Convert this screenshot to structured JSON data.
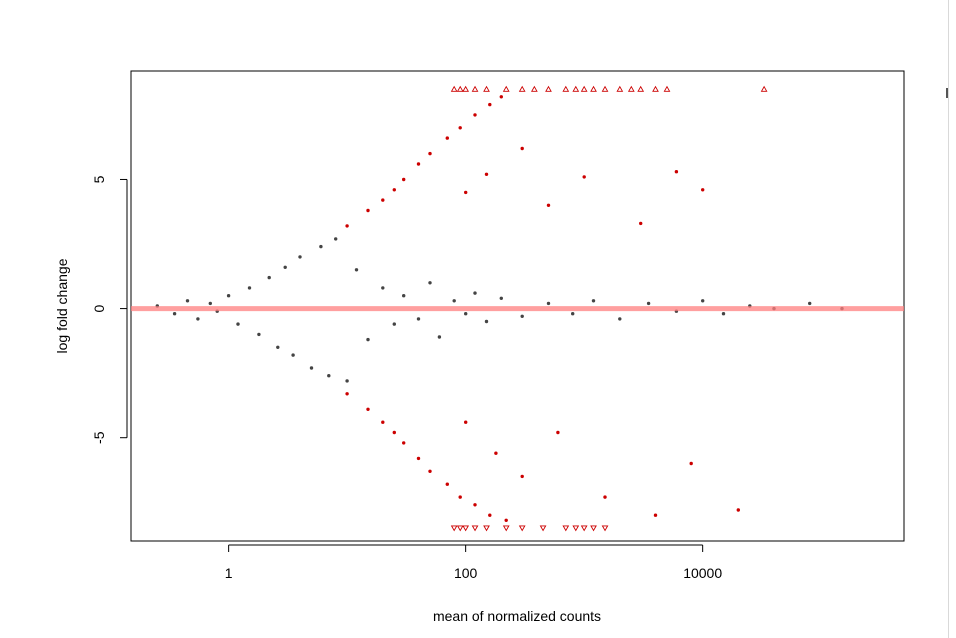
{
  "chart_data": {
    "type": "scatter",
    "title": "",
    "xlabel": "mean of normalized counts",
    "ylabel": "log fold change",
    "x_scale": "log10",
    "xlim": [
      0.15,
      500000
    ],
    "ylim": [
      -9.0,
      9.2
    ],
    "x_ticks": [
      {
        "value": 1,
        "label": "1"
      },
      {
        "value": 100,
        "label": "100"
      },
      {
        "value": 10000,
        "label": "10000"
      }
    ],
    "y_ticks": [
      {
        "value": 5,
        "label": "5"
      },
      {
        "value": 0,
        "label": "0"
      },
      {
        "value": -5,
        "label": "-5"
      }
    ],
    "reference_line": {
      "y": 0,
      "color": "#ff7f7f"
    },
    "grid": false,
    "legend": "none",
    "series": [
      {
        "color": "#444444",
        "points": [
          [
            0.25,
            0.1
          ],
          [
            0.35,
            -0.2
          ],
          [
            0.45,
            0.3
          ],
          [
            0.55,
            -0.4
          ],
          [
            0.7,
            0.2
          ],
          [
            0.8,
            -0.1
          ],
          [
            1.0,
            0.5
          ],
          [
            1.2,
            -0.6
          ],
          [
            1.5,
            0.8
          ],
          [
            1.8,
            -1.0
          ],
          [
            2.2,
            1.2
          ],
          [
            2.6,
            -1.5
          ],
          [
            3.0,
            1.6
          ],
          [
            3.5,
            -1.8
          ],
          [
            4.0,
            2.0
          ],
          [
            5.0,
            -2.3
          ],
          [
            6.0,
            2.4
          ],
          [
            7.0,
            -2.6
          ],
          [
            8.0,
            2.7
          ],
          [
            10,
            -2.8
          ],
          [
            12,
            1.5
          ],
          [
            15,
            -1.2
          ],
          [
            20,
            0.8
          ],
          [
            25,
            -0.6
          ],
          [
            30,
            0.5
          ],
          [
            40,
            -0.4
          ],
          [
            50,
            1.0
          ],
          [
            60,
            -1.1
          ],
          [
            80,
            0.3
          ],
          [
            100,
            -0.2
          ],
          [
            120,
            0.6
          ],
          [
            150,
            -0.5
          ],
          [
            200,
            0.4
          ],
          [
            300,
            -0.3
          ],
          [
            500,
            0.2
          ],
          [
            800,
            -0.2
          ],
          [
            1200,
            0.3
          ],
          [
            2000,
            -0.4
          ],
          [
            3500,
            0.2
          ],
          [
            6000,
            -0.1
          ],
          [
            10000,
            0.3
          ],
          [
            15000,
            -0.2
          ],
          [
            25000,
            0.1
          ],
          [
            40000,
            0.0
          ],
          [
            80000,
            0.2
          ],
          [
            150000,
            0.0
          ]
        ]
      },
      {
        "color": "#cc0000",
        "points": [
          [
            10,
            3.2
          ],
          [
            15,
            3.8
          ],
          [
            20,
            4.2
          ],
          [
            25,
            4.6
          ],
          [
            30,
            5.0
          ],
          [
            40,
            5.6
          ],
          [
            50,
            6.0
          ],
          [
            70,
            6.6
          ],
          [
            90,
            7.0
          ],
          [
            120,
            7.5
          ],
          [
            160,
            7.9
          ],
          [
            200,
            8.2
          ],
          [
            100,
            4.5
          ],
          [
            150,
            5.2
          ],
          [
            300,
            6.2
          ],
          [
            500,
            4.0
          ],
          [
            1000,
            5.1
          ],
          [
            3000,
            3.3
          ],
          [
            6000,
            5.3
          ],
          [
            10000,
            4.6
          ],
          [
            10,
            -3.3
          ],
          [
            15,
            -3.9
          ],
          [
            20,
            -4.4
          ],
          [
            25,
            -4.8
          ],
          [
            30,
            -5.2
          ],
          [
            40,
            -5.8
          ],
          [
            50,
            -6.3
          ],
          [
            70,
            -6.8
          ],
          [
            90,
            -7.3
          ],
          [
            120,
            -7.6
          ],
          [
            160,
            -8.0
          ],
          [
            220,
            -8.2
          ],
          [
            100,
            -4.4
          ],
          [
            180,
            -5.6
          ],
          [
            300,
            -6.5
          ],
          [
            600,
            -4.8
          ],
          [
            1500,
            -7.3
          ],
          [
            4000,
            -8.0
          ],
          [
            8000,
            -6.0
          ],
          [
            20000,
            -7.8
          ]
        ]
      }
    ],
    "outliers": {
      "marker": "triangle",
      "color": "#cc0000",
      "top": {
        "y": 8.5,
        "x": [
          80,
          90,
          100,
          120,
          150,
          220,
          300,
          380,
          500,
          700,
          850,
          1000,
          1200,
          1500,
          2000,
          2500,
          3000,
          4000,
          5000,
          33000
        ]
      },
      "bottom": {
        "y": -8.5,
        "x": [
          80,
          90,
          100,
          120,
          150,
          220,
          300,
          450,
          700,
          850,
          1000,
          1200,
          1500
        ]
      }
    }
  }
}
